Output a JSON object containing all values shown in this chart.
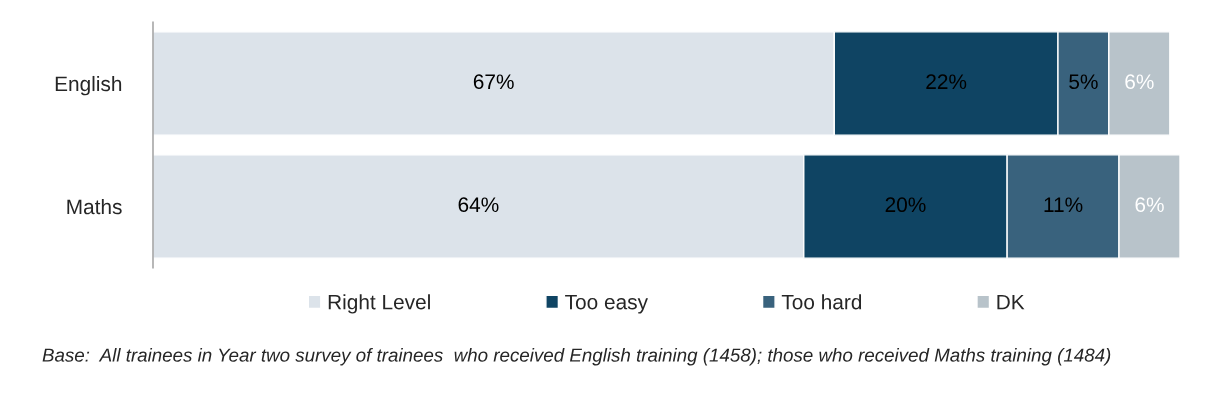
{
  "chart_data": {
    "type": "bar",
    "orientation": "horizontal",
    "stacked": true,
    "legend": "bottom",
    "grid": false,
    "categories": [
      "English",
      "Maths"
    ],
    "series": [
      {
        "name": "Right Level",
        "color": "#dce3ea",
        "values": [
          67,
          64
        ],
        "value_labels": [
          "67%",
          "64%"
        ]
      },
      {
        "name": "Too easy",
        "color": "#0f4463",
        "values": [
          22,
          20
        ],
        "value_labels": [
          "22%",
          "20%"
        ]
      },
      {
        "name": "Too hard",
        "color": "#39627d",
        "values": [
          5,
          11
        ],
        "value_labels": [
          "5%",
          "11%"
        ]
      },
      {
        "name": "DK",
        "color": "#b8c3ca",
        "values": [
          6,
          6
        ],
        "value_labels": [
          "6%",
          "6%"
        ]
      }
    ],
    "annotations": [
      "Base:  All trainees in Year two survey of trainees  who received English training (1458); those who received Maths training (1484)"
    ]
  }
}
